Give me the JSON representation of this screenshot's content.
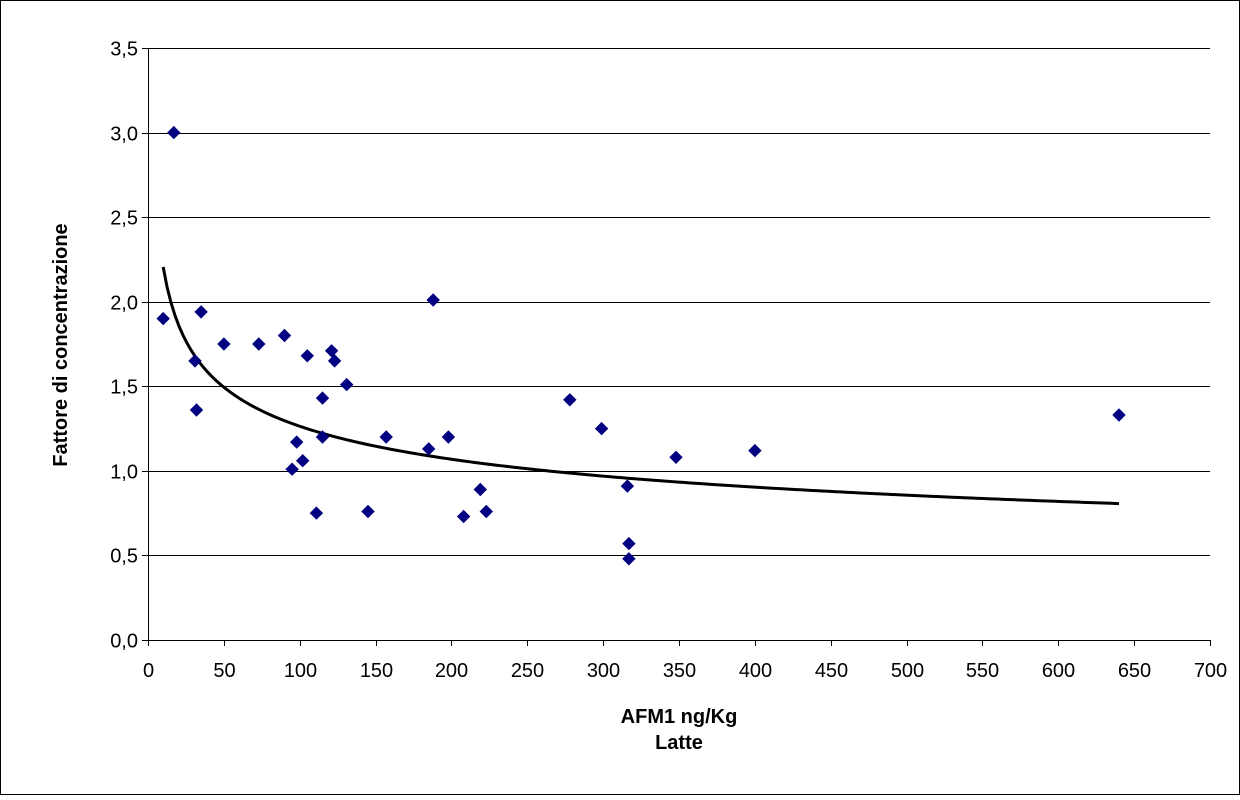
{
  "chart_data": {
    "type": "scatter",
    "title": "",
    "xlabel": "AFM1 ng/Kg",
    "xlabel_line2": "Latte",
    "ylabel": "Fattore di concentrazione",
    "xlim": [
      0,
      700
    ],
    "ylim": [
      0,
      3.5
    ],
    "x_ticks": [
      0,
      50,
      100,
      150,
      200,
      250,
      300,
      350,
      400,
      450,
      500,
      550,
      600,
      650,
      700
    ],
    "x_tick_labels": [
      "0",
      "50",
      "100",
      "150",
      "200",
      "250",
      "300",
      "350",
      "400",
      "450",
      "500",
      "550",
      "600",
      "650",
      "700"
    ],
    "y_ticks": [
      0,
      0.5,
      1.0,
      1.5,
      2.0,
      2.5,
      3.0,
      3.5
    ],
    "y_tick_labels": [
      "0,0",
      "0,5",
      "1,0",
      "1,5",
      "2,0",
      "2,5",
      "3,0",
      "3,5"
    ],
    "grid": "horizontal",
    "legend": "none",
    "series": [
      {
        "marker": "diamond",
        "color": "#000080",
        "points": [
          {
            "x": 10,
            "y": 1.9
          },
          {
            "x": 17,
            "y": 3.0
          },
          {
            "x": 31,
            "y": 1.65
          },
          {
            "x": 32,
            "y": 1.36
          },
          {
            "x": 35,
            "y": 1.94
          },
          {
            "x": 50,
            "y": 1.75
          },
          {
            "x": 73,
            "y": 1.75
          },
          {
            "x": 90,
            "y": 1.8
          },
          {
            "x": 95,
            "y": 1.01
          },
          {
            "x": 98,
            "y": 1.17
          },
          {
            "x": 102,
            "y": 1.06
          },
          {
            "x": 105,
            "y": 1.68
          },
          {
            "x": 111,
            "y": 0.75
          },
          {
            "x": 115,
            "y": 1.2
          },
          {
            "x": 115,
            "y": 1.43
          },
          {
            "x": 121,
            "y": 1.71
          },
          {
            "x": 123,
            "y": 1.65
          },
          {
            "x": 131,
            "y": 1.51
          },
          {
            "x": 145,
            "y": 0.76
          },
          {
            "x": 157,
            "y": 1.2
          },
          {
            "x": 185,
            "y": 1.13
          },
          {
            "x": 188,
            "y": 2.01
          },
          {
            "x": 198,
            "y": 1.2
          },
          {
            "x": 208,
            "y": 0.73
          },
          {
            "x": 219,
            "y": 0.89
          },
          {
            "x": 223,
            "y": 0.76
          },
          {
            "x": 278,
            "y": 1.42
          },
          {
            "x": 299,
            "y": 1.25
          },
          {
            "x": 316,
            "y": 0.91
          },
          {
            "x": 317,
            "y": 0.57
          },
          {
            "x": 317,
            "y": 0.48
          },
          {
            "x": 348,
            "y": 1.08
          },
          {
            "x": 400,
            "y": 1.12
          },
          {
            "x": 640,
            "y": 1.33
          }
        ]
      }
    ],
    "trendline": {
      "type": "power",
      "color": "#000000",
      "x_range": [
        10,
        640
      ],
      "a": 3.85,
      "b": -0.2419
    }
  }
}
